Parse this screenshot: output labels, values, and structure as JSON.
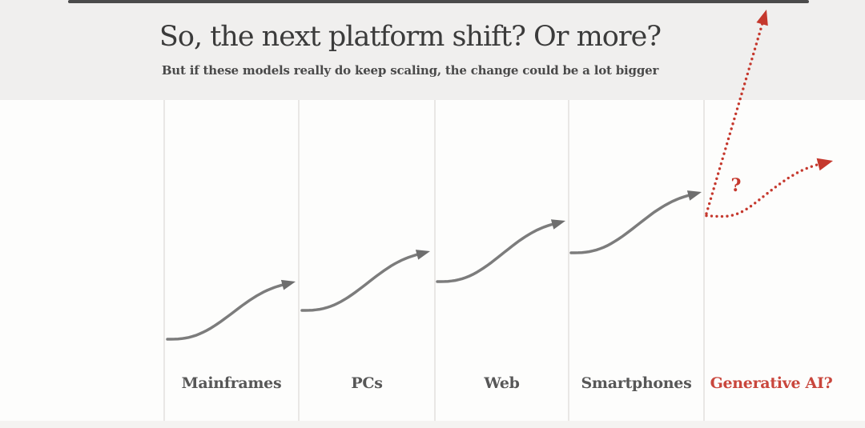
{
  "header": {
    "title": "So, the next platform shift? Or more?",
    "subtitle": "But if these models really do keep scaling, the change could be a lot bigger"
  },
  "columns": [
    {
      "label": "Mainframes",
      "highlight": false
    },
    {
      "label": "PCs",
      "highlight": false
    },
    {
      "label": "Web",
      "highlight": false
    },
    {
      "label": "Smartphones",
      "highlight": false
    },
    {
      "label": "Generative AI?",
      "highlight": true
    }
  ],
  "annotations": {
    "question_mark": "?"
  },
  "colors": {
    "accent_red": "#c5382d",
    "label_red": "#c9463c",
    "curve_gray": "#7c7c7c",
    "arrowhead_gray": "#6e6e6e",
    "divider": "#e9e7e5",
    "header_bg": "#f0efee",
    "title_text": "#3b3b3b",
    "label_gray": "#575757"
  },
  "chart_data": {
    "type": "diagram",
    "subtype": "s-curve-succession",
    "title": "So, the next platform shift? Or more?",
    "subtitle": "But if these models really do keep scaling, the change could be a lot bigger",
    "eras": [
      "Mainframes",
      "PCs",
      "Web",
      "Smartphones",
      "Generative AI?"
    ],
    "era_curves": [
      {
        "era": "Mainframes",
        "style": "solid",
        "color": "gray",
        "shape": "rising s-curve with right arrowhead"
      },
      {
        "era": "PCs",
        "style": "solid",
        "color": "gray",
        "shape": "rising s-curve with right arrowhead, starts below previous curve's end"
      },
      {
        "era": "Web",
        "style": "solid",
        "color": "gray",
        "shape": "rising s-curve with right arrowhead, starts below previous curve's end"
      },
      {
        "era": "Smartphones",
        "style": "solid",
        "color": "gray",
        "shape": "rising s-curve with right arrowhead, starts below previous curve's end"
      }
    ],
    "speculative_arrows": [
      {
        "era": "Generative AI?",
        "style": "dotted",
        "color": "red",
        "shape": "steep nearly-vertical straight arrow shooting off the top of the slide"
      },
      {
        "era": "Generative AI?",
        "style": "dotted",
        "color": "red",
        "shape": "rising s-curve with right arrowhead, same pattern as previous platforms"
      }
    ],
    "annotation": "? placed between the two red dotted arrows",
    "legend_position": "none",
    "grid": "vertical column dividers only"
  }
}
